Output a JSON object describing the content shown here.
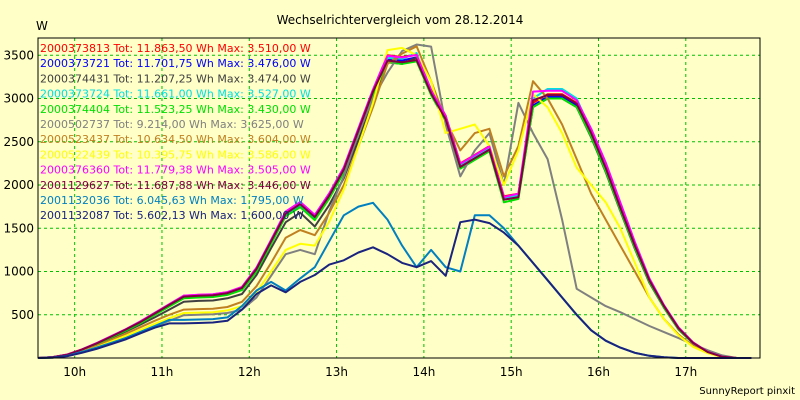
{
  "chart_data": {
    "type": "line",
    "title": "Wechselrichtervergleich vom 28.12.2014",
    "ylabel": "W",
    "footer": "SunnyReport pinxit",
    "ylim": [
      0,
      3700
    ],
    "xlim": [
      9.58,
      17.85
    ],
    "yticks": [
      500,
      1000,
      1500,
      2000,
      2500,
      3000,
      3500
    ],
    "xticks": [
      {
        "value": 10,
        "label": "10h"
      },
      {
        "value": 11,
        "label": "11h"
      },
      {
        "value": 12,
        "label": "12h"
      },
      {
        "value": 13,
        "label": "13h"
      },
      {
        "value": 14,
        "label": "14h"
      },
      {
        "value": 15,
        "label": "15h"
      },
      {
        "value": 16,
        "label": "16h"
      },
      {
        "value": 17,
        "label": "17h"
      }
    ],
    "grid": true,
    "x": [
      9.583,
      9.75,
      9.917,
      10.083,
      10.25,
      10.417,
      10.583,
      10.75,
      10.917,
      11.083,
      11.25,
      11.417,
      11.583,
      11.75,
      11.917,
      12.083,
      12.25,
      12.417,
      12.583,
      12.75,
      12.917,
      13.083,
      13.25,
      13.417,
      13.583,
      13.75,
      13.917,
      14.083,
      14.25,
      14.417,
      14.583,
      14.75,
      14.917,
      15.083,
      15.25,
      15.417,
      15.583,
      15.75,
      15.917,
      16.083,
      16.25,
      16.417,
      16.583,
      16.75,
      16.917,
      17.083,
      17.25,
      17.417,
      17.583,
      17.75
    ],
    "series": [
      {
        "name": "2000373813",
        "label": "2000373813 Tot: 11.863,50 Wh Max: 3.510,00 W",
        "color": "#ff0000",
        "values": [
          0,
          10,
          40,
          100,
          170,
          250,
          330,
          420,
          520,
          620,
          720,
          730,
          735,
          760,
          820,
          1040,
          1360,
          1690,
          1800,
          1650,
          1900,
          2200,
          2650,
          3100,
          3500,
          3480,
          3510,
          3100,
          2800,
          2250,
          2350,
          2450,
          1870,
          1900,
          2950,
          3050,
          3050,
          2950,
          2600,
          2200,
          1750,
          1300,
          900,
          600,
          350,
          180,
          70,
          15,
          0,
          0
        ]
      },
      {
        "name": "2000373721",
        "label": "2000373721 Tot: 11.701,75 Wh Max: 3.476,00 W",
        "color": "#0000ff",
        "values": [
          0,
          10,
          38,
          95,
          165,
          245,
          325,
          410,
          510,
          610,
          705,
          715,
          720,
          745,
          800,
          1020,
          1340,
          1660,
          1770,
          1620,
          1870,
          2170,
          2620,
          3070,
          3460,
          3440,
          3476,
          3070,
          2770,
          2220,
          2320,
          2420,
          1840,
          1870,
          2920,
          3020,
          3020,
          2920,
          2570,
          2170,
          1720,
          1280,
          890,
          590,
          340,
          175,
          68,
          14,
          0,
          0
        ]
      },
      {
        "name": "2000374431",
        "label": "2000374431 Tot: 11.207,25 Wh Max: 3.474,00 W",
        "color": "#404040",
        "values": [
          0,
          8,
          35,
          90,
          155,
          230,
          305,
          385,
          470,
          560,
          650,
          660,
          665,
          690,
          740,
          960,
          1270,
          1570,
          1680,
          1520,
          1770,
          2080,
          2520,
          2970,
          3420,
          3400,
          3474,
          3060,
          2760,
          2200,
          2300,
          2400,
          1830,
          1860,
          2900,
          3000,
          3000,
          2900,
          2550,
          2150,
          1700,
          1260,
          870,
          580,
          330,
          170,
          65,
          12,
          0,
          0
        ]
      },
      {
        "name": "2000373724",
        "label": "2000373724 Tot: 11.661,00 Wh Max: 3.527,00 W",
        "color": "#00e0e0",
        "values": [
          0,
          10,
          38,
          96,
          166,
          246,
          326,
          412,
          512,
          612,
          708,
          718,
          722,
          748,
          805,
          1025,
          1345,
          1665,
          1775,
          1625,
          1875,
          2175,
          2625,
          3075,
          3470,
          3460,
          3527,
          3090,
          2790,
          2230,
          2330,
          2430,
          1850,
          1880,
          3000,
          3110,
          3110,
          3000,
          2620,
          2200,
          1730,
          1290,
          900,
          600,
          345,
          178,
          70,
          15,
          0,
          0
        ]
      },
      {
        "name": "2000374404",
        "label": "2000374404 Tot: 11.523,25 Wh Max: 3.430,00 W",
        "color": "#00e000",
        "values": [
          0,
          9,
          36,
          92,
          160,
          238,
          316,
          400,
          498,
          596,
          690,
          700,
          705,
          730,
          785,
          1000,
          1320,
          1640,
          1745,
          1595,
          1845,
          2145,
          2595,
          3040,
          3420,
          3400,
          3430,
          3040,
          2740,
          2190,
          2290,
          2390,
          1800,
          1840,
          2900,
          3000,
          3000,
          2900,
          2560,
          2160,
          1710,
          1270,
          880,
          585,
          335,
          172,
          66,
          13,
          0,
          0
        ]
      },
      {
        "name": "2000502737",
        "label": "2000502737 Tot: 9.214,00 Wh Max: 3.625,00 W",
        "color": "#808080",
        "values": [
          0,
          5,
          25,
          65,
          115,
          175,
          235,
          300,
          365,
          430,
          495,
          500,
          505,
          520,
          560,
          700,
          950,
          1200,
          1250,
          1200,
          1700,
          2100,
          2600,
          3000,
          3300,
          3550,
          3625,
          3600,
          2700,
          2100,
          2400,
          2600,
          2000,
          2950,
          2600,
          2300,
          1600,
          800,
          700,
          600,
          530,
          450,
          370,
          300,
          230,
          160,
          90,
          30,
          0,
          0
        ]
      },
      {
        "name": "2000523437",
        "label": "2000523437 Tot: 10.634,50 Wh Max: 3.604,00 W",
        "color": "#c08020",
        "values": [
          0,
          7,
          30,
          80,
          140,
          210,
          280,
          355,
          430,
          500,
          560,
          565,
          570,
          590,
          650,
          830,
          1100,
          1390,
          1480,
          1420,
          1680,
          2000,
          2450,
          2900,
          3400,
          3520,
          3604,
          3200,
          2750,
          2400,
          2600,
          2650,
          2100,
          2450,
          3200,
          3000,
          2700,
          2300,
          1900,
          1600,
          1300,
          1000,
          700,
          450,
          270,
          140,
          60,
          12,
          0,
          0
        ]
      },
      {
        "name": "2000522439",
        "label": "2000522439 Tot: 10.395,75 Wh Max: 3.586,00 W",
        "color": "#ffff00",
        "values": [
          0,
          6,
          28,
          70,
          125,
          190,
          255,
          325,
          395,
          460,
          520,
          525,
          530,
          550,
          600,
          760,
          1000,
          1250,
          1320,
          1300,
          1580,
          1950,
          2450,
          2950,
          3560,
          3586,
          3500,
          3200,
          2600,
          2650,
          2700,
          2450,
          2000,
          2400,
          3050,
          2900,
          2600,
          2200,
          2000,
          1800,
          1500,
          1100,
          700,
          450,
          260,
          130,
          55,
          10,
          0,
          0
        ]
      },
      {
        "name": "2000376360",
        "label": "2000376360 Tot: 11.779,38 Wh Max: 3.505,00 W",
        "color": "#ff00ff",
        "values": [
          0,
          10,
          40,
          100,
          172,
          252,
          332,
          422,
          522,
          622,
          722,
          732,
          738,
          762,
          822,
          1045,
          1365,
          1695,
          1805,
          1655,
          1905,
          2205,
          2655,
          3105,
          3495,
          3475,
          3505,
          3095,
          2795,
          2245,
          2345,
          2445,
          1860,
          1900,
          3080,
          3090,
          3090,
          2980,
          2650,
          2260,
          1800,
          1340,
          920,
          610,
          355,
          182,
          72,
          15,
          0,
          0
        ]
      },
      {
        "name": "2001129627",
        "label": "2001129627 Tot: 11.687,88 Wh Max: 3.446,00 W",
        "color": "#800040",
        "values": [
          0,
          10,
          38,
          97,
          168,
          248,
          328,
          414,
          514,
          614,
          710,
          720,
          725,
          750,
          810,
          1030,
          1350,
          1670,
          1780,
          1630,
          1880,
          2180,
          2630,
          3080,
          3440,
          3420,
          3446,
          3060,
          2760,
          2210,
          2310,
          2410,
          1830,
          1860,
          2980,
          3040,
          3040,
          2940,
          2600,
          2200,
          1740,
          1300,
          900,
          600,
          345,
          176,
          69,
          14,
          0,
          0
        ]
      },
      {
        "name": "2001132036",
        "label": "2001132036 Tot: 6.045,63 Wh Max: 1.795,00 W",
        "color": "#0080c0",
        "values": [
          0,
          5,
          25,
          70,
          120,
          175,
          230,
          300,
          370,
          440,
          440,
          445,
          450,
          470,
          600,
          780,
          880,
          780,
          920,
          1050,
          1350,
          1650,
          1750,
          1795,
          1600,
          1300,
          1050,
          1250,
          1050,
          1000,
          1650,
          1650,
          1500,
          1300,
          1100,
          900,
          700,
          500,
          320,
          200,
          120,
          60,
          25,
          8,
          0,
          0,
          0,
          0,
          0,
          0
        ]
      },
      {
        "name": "2001132087",
        "label": "2001132087 Tot: 5.602,13 Wh Max: 1.600,00 W",
        "color": "#1a237e",
        "values": [
          0,
          5,
          22,
          60,
          105,
          160,
          215,
          285,
          350,
          400,
          400,
          405,
          410,
          430,
          560,
          740,
          840,
          760,
          880,
          960,
          1080,
          1130,
          1220,
          1280,
          1200,
          1100,
          1050,
          1120,
          950,
          1570,
          1600,
          1560,
          1450,
          1300,
          1100,
          900,
          700,
          500,
          320,
          200,
          120,
          60,
          25,
          8,
          0,
          0,
          0,
          0,
          0,
          0
        ]
      }
    ]
  }
}
